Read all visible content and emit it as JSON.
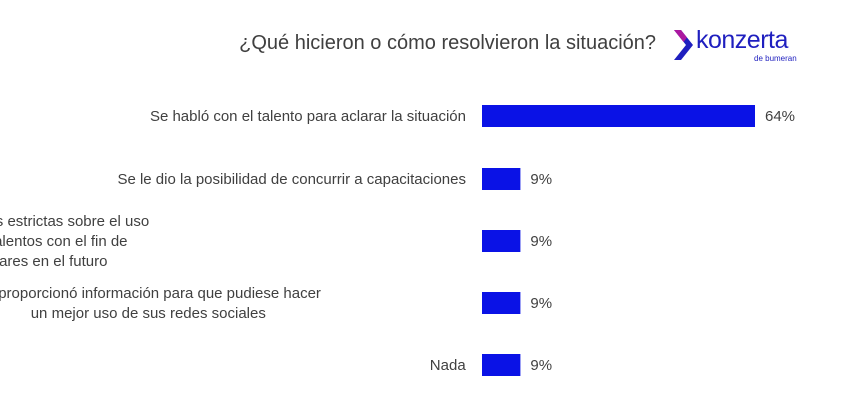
{
  "header": {
    "title": "¿Qué hicieron o cómo resolvieron la situación?",
    "logo_text": "konzerta",
    "logo_subtext": "de bumeran"
  },
  "colors": {
    "bar": "#0a12e6",
    "brand": "#1f1fbf",
    "brand_accent": "#c4179a"
  },
  "chart_data": {
    "type": "bar",
    "orientation": "horizontal",
    "title": "¿Qué hicieron o cómo resolvieron la situación?",
    "categories": [
      [
        "Se habló con el talento para aclarar la situación"
      ],
      [
        "Se le dio la posibilidad de concurrir a capacitaciones"
      ],
      [
        "Se implementaron políticas más estrictas sobre el uso",
        "de redes sociales para los talentos con el fin de",
        "prevenir situaciones similares en el futuro"
      ],
      [
        "Se proporcionó información para que pudiese hacer",
        "un mejor uso de sus redes sociales"
      ],
      [
        "Nada"
      ]
    ],
    "values": [
      64,
      9,
      9,
      9,
      9
    ],
    "value_labels": [
      "64%",
      "9%",
      "9%",
      "9%",
      "9%"
    ],
    "xlim": [
      0,
      64
    ],
    "grid": false,
    "legend": "none"
  }
}
